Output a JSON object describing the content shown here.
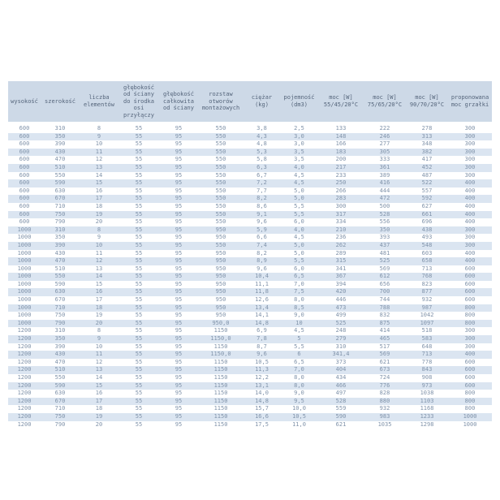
{
  "page": {
    "background": "#ffffff"
  },
  "colors": {
    "header_bg": "#cdd9e7",
    "stripe_row_bg": "#dbe5f1",
    "plain_row_bg": "#ffffff",
    "header_text": "#55657b",
    "data_text": "#8093aa"
  },
  "table": {
    "description": "radiator-specification-table",
    "columns": [
      "wysokość",
      "szerokość",
      "liczba\nelementów",
      "głębokość\nod ściany\ndo środka\nosi\nprzyłączy",
      "głębokość\ncałkowita\nod ściany",
      "rozstaw\notworów\nmontażowych",
      "ciężar\n(kg)",
      "pojemność\n(dm3)",
      "moc [W]\n55/45/20°C",
      "moc [W]\n75/65/20°C",
      "moc [W]\n90/70/20°C",
      "proponowana\nmoc grzałki"
    ],
    "rows": [
      [
        "600",
        "310",
        "8",
        "55",
        "95",
        "550",
        "3,8",
        "2,5",
        "133",
        "222",
        "278",
        "300"
      ],
      [
        "600",
        "350",
        "9",
        "55",
        "95",
        "550",
        "4,3",
        "3,0",
        "148",
        "246",
        "313",
        "300"
      ],
      [
        "600",
        "390",
        "10",
        "55",
        "95",
        "550",
        "4,8",
        "3,0",
        "166",
        "277",
        "348",
        "300"
      ],
      [
        "600",
        "430",
        "11",
        "55",
        "95",
        "550",
        "5,3",
        "3,5",
        "183",
        "305",
        "382",
        "300"
      ],
      [
        "600",
        "470",
        "12",
        "55",
        "95",
        "550",
        "5,8",
        "3,5",
        "200",
        "333",
        "417",
        "300"
      ],
      [
        "600",
        "510",
        "13",
        "55",
        "95",
        "550",
        "6,3",
        "4,0",
        "217",
        "361",
        "452",
        "300"
      ],
      [
        "600",
        "550",
        "14",
        "55",
        "95",
        "550",
        "6,7",
        "4,5",
        "233",
        "389",
        "487",
        "300"
      ],
      [
        "600",
        "590",
        "15",
        "55",
        "95",
        "550",
        "7,2",
        "4,5",
        "250",
        "416",
        "522",
        "400"
      ],
      [
        "600",
        "630",
        "16",
        "55",
        "95",
        "550",
        "7,7",
        "5,0",
        "266",
        "444",
        "557",
        "400"
      ],
      [
        "600",
        "670",
        "17",
        "55",
        "95",
        "550",
        "8,2",
        "5,0",
        "283",
        "472",
        "592",
        "400"
      ],
      [
        "600",
        "710",
        "18",
        "55",
        "95",
        "550",
        "8,6",
        "5,5",
        "300",
        "500",
        "627",
        "400"
      ],
      [
        "600",
        "750",
        "19",
        "55",
        "95",
        "550",
        "9,1",
        "5,5",
        "317",
        "528",
        "661",
        "400"
      ],
      [
        "600",
        "790",
        "20",
        "55",
        "95",
        "550",
        "9,6",
        "6,0",
        "334",
        "556",
        "696",
        "400"
      ],
      [
        "1000",
        "310",
        "8",
        "55",
        "95",
        "950",
        "5,9",
        "4,0",
        "210",
        "350",
        "438",
        "300"
      ],
      [
        "1000",
        "350",
        "9",
        "55",
        "95",
        "950",
        "6,6",
        "4,5",
        "236",
        "393",
        "493",
        "300"
      ],
      [
        "1000",
        "390",
        "10",
        "55",
        "95",
        "550",
        "7,4",
        "5,0",
        "262",
        "437",
        "548",
        "300"
      ],
      [
        "1000",
        "430",
        "11",
        "55",
        "95",
        "950",
        "8,2",
        "5,0",
        "289",
        "481",
        "603",
        "400"
      ],
      [
        "1000",
        "470",
        "12",
        "55",
        "95",
        "950",
        "8,9",
        "5,5",
        "315",
        "525",
        "658",
        "400"
      ],
      [
        "1000",
        "510",
        "13",
        "55",
        "95",
        "950",
        "9,6",
        "6,0",
        "341",
        "569",
        "713",
        "600"
      ],
      [
        "1000",
        "550",
        "14",
        "55",
        "95",
        "950",
        "10,4",
        "6,5",
        "367",
        "612",
        "768",
        "600"
      ],
      [
        "1000",
        "590",
        "15",
        "55",
        "95",
        "950",
        "11,1",
        "7,0",
        "394",
        "656",
        "823",
        "600"
      ],
      [
        "1000",
        "630",
        "16",
        "55",
        "95",
        "950",
        "11,8",
        "7,5",
        "420",
        "700",
        "877",
        "600"
      ],
      [
        "1000",
        "670",
        "17",
        "55",
        "95",
        "950",
        "12,6",
        "8,0",
        "446",
        "744",
        "932",
        "600"
      ],
      [
        "1000",
        "710",
        "18",
        "55",
        "95",
        "950",
        "13,4",
        "8,5",
        "473",
        "788",
        "987",
        "800"
      ],
      [
        "1000",
        "750",
        "19",
        "55",
        "95",
        "950",
        "14,1",
        "9,0",
        "499",
        "832",
        "1042",
        "800"
      ],
      [
        "1000",
        "790",
        "20",
        "55",
        "95",
        "950,0",
        "14,8",
        "10",
        "525",
        "875",
        "1097",
        "800"
      ],
      [
        "1200",
        "310",
        "8",
        "55",
        "95",
        "1150",
        "6,9",
        "4,5",
        "248",
        "414",
        "518",
        "300"
      ],
      [
        "1200",
        "350",
        "9",
        "55",
        "95",
        "1150,0",
        "7,8",
        "5",
        "279",
        "465",
        "583",
        "300"
      ],
      [
        "1200",
        "390",
        "10",
        "55",
        "95",
        "1150",
        "8,7",
        "5,5",
        "310",
        "517",
        "648",
        "300"
      ],
      [
        "1200",
        "430",
        "11",
        "55",
        "95",
        "1150,0",
        "9,6",
        "6",
        "341,4",
        "569",
        "713",
        "400"
      ],
      [
        "1200",
        "470",
        "12",
        "55",
        "95",
        "1150",
        "10,5",
        "6,5",
        "373",
        "621",
        "778",
        "600"
      ],
      [
        "1200",
        "510",
        "13",
        "55",
        "95",
        "1150",
        "11,3",
        "7,0",
        "404",
        "673",
        "843",
        "600"
      ],
      [
        "1200",
        "550",
        "14",
        "55",
        "95",
        "1150",
        "12,2",
        "8,0",
        "434",
        "724",
        "908",
        "600"
      ],
      [
        "1200",
        "590",
        "15",
        "55",
        "95",
        "1150",
        "13,1",
        "8,0",
        "466",
        "776",
        "973",
        "600"
      ],
      [
        "1200",
        "630",
        "16",
        "55",
        "95",
        "1150",
        "14,0",
        "9,0",
        "497",
        "828",
        "1038",
        "800"
      ],
      [
        "1200",
        "670",
        "17",
        "55",
        "95",
        "1150",
        "14,8",
        "9,5",
        "528",
        "880",
        "1103",
        "800"
      ],
      [
        "1200",
        "710",
        "18",
        "55",
        "95",
        "1150",
        "15,7",
        "10,0",
        "559",
        "932",
        "1168",
        "800"
      ],
      [
        "1200",
        "750",
        "19",
        "55",
        "95",
        "1150",
        "16,6",
        "10,5",
        "590",
        "983",
        "1233",
        "1000"
      ],
      [
        "1200",
        "790",
        "20",
        "55",
        "95",
        "1150",
        "17,5",
        "11,0",
        "621",
        "1035",
        "1298",
        "1000"
      ]
    ]
  }
}
